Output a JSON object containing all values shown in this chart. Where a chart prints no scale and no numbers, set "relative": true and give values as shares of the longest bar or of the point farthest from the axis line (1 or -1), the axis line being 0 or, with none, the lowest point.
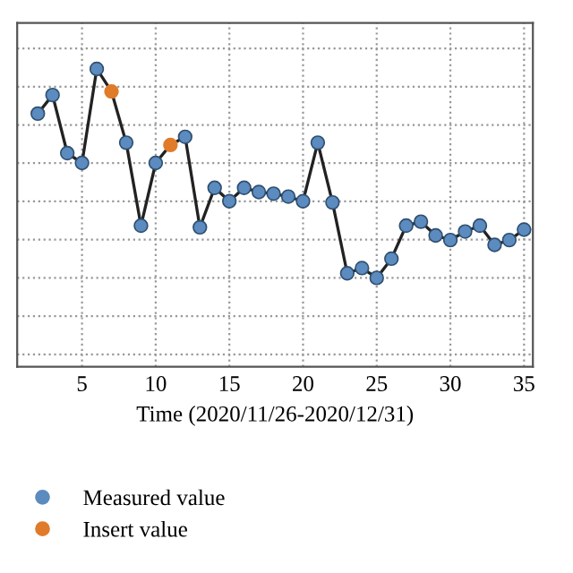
{
  "chart_data": {
    "type": "line",
    "relative": true,
    "xlabel": "Time (2020/11/26-2020/12/31)",
    "x": [
      2,
      3,
      4,
      5,
      6,
      7,
      8,
      9,
      10,
      11,
      12,
      13,
      14,
      15,
      16,
      17,
      18,
      19,
      20,
      21,
      22,
      23,
      24,
      25,
      26,
      27,
      28,
      29,
      30,
      31,
      32,
      33,
      34,
      35
    ],
    "xlim": [
      0.6,
      35.6
    ],
    "xticks": [
      5,
      10,
      15,
      20,
      25,
      30,
      35
    ],
    "series": [
      {
        "color": "#222222",
        "marker": "none",
        "values": [
          0.786,
          0.875,
          0.597,
          0.55,
          1,
          0.892,
          0.647,
          0.25,
          0.55,
          0.636,
          0.675,
          0.242,
          0.431,
          0.367,
          0.431,
          0.411,
          0.403,
          0.389,
          0.367,
          0.647,
          0.361,
          0.022,
          0.047,
          0,
          0.092,
          0.25,
          0.269,
          0.203,
          0.181,
          0.222,
          0.25,
          0.158,
          0.181,
          0.231
        ]
      },
      {
        "type": "scatter",
        "name": "Measured value",
        "color": "#5b8bbf",
        "marker": "circle",
        "values": [
          0.786,
          0.875,
          0.597,
          0.55,
          1,
          null,
          0.647,
          0.25,
          0.55,
          null,
          0.675,
          0.242,
          0.431,
          0.367,
          0.431,
          0.411,
          0.403,
          0.389,
          0.367,
          0.647,
          0.361,
          0.022,
          0.047,
          0,
          0.092,
          0.25,
          0.269,
          0.203,
          0.181,
          0.222,
          0.25,
          0.158,
          0.181,
          0.231
        ]
      },
      {
        "type": "scatter",
        "name": "Insert value",
        "color": "#e07b2a",
        "marker": "circle",
        "values": [
          null,
          null,
          null,
          null,
          null,
          0.892,
          null,
          null,
          null,
          0.636,
          null,
          null,
          null,
          null,
          null,
          null,
          null,
          null,
          null,
          null,
          null,
          null,
          null,
          null,
          null,
          null,
          null,
          null,
          null,
          null,
          null,
          null,
          null,
          null
        ]
      }
    ],
    "grid": true,
    "line_style": "solid",
    "legend": "bottom left",
    "tick_labels": "x"
  }
}
